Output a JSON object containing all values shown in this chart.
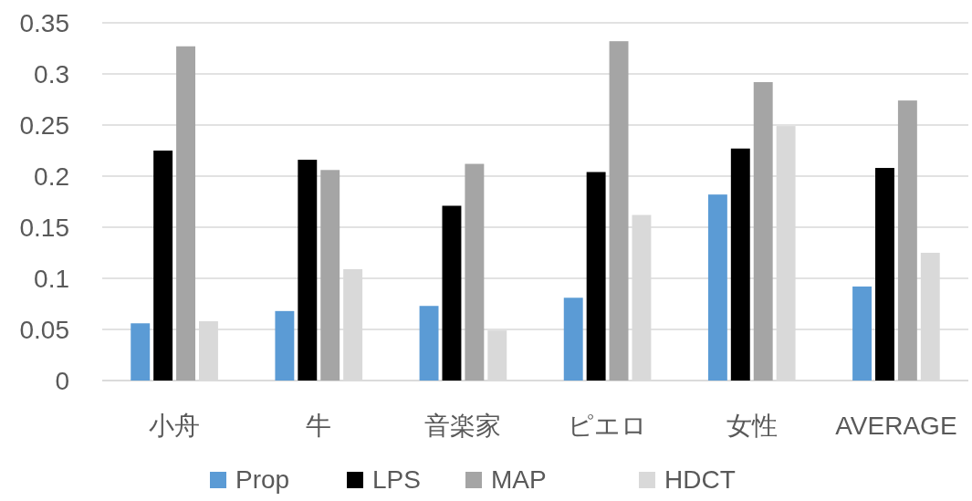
{
  "chart_data": {
    "type": "bar",
    "categories": [
      "小舟",
      "牛",
      "音楽家",
      "ピエロ",
      "女性",
      "AVERAGE"
    ],
    "series": [
      {
        "name": "Prop",
        "color": "#5b9bd5",
        "values": [
          0.056,
          0.068,
          0.073,
          0.081,
          0.182,
          0.092
        ]
      },
      {
        "name": "LPS",
        "color": "#000000",
        "values": [
          0.225,
          0.216,
          0.171,
          0.204,
          0.227,
          0.208
        ]
      },
      {
        "name": "MAP",
        "color": "#a5a5a5",
        "values": [
          0.327,
          0.206,
          0.212,
          0.332,
          0.292,
          0.274
        ]
      },
      {
        "name": "HDCT",
        "color": "#d9d9d9",
        "values": [
          0.058,
          0.109,
          0.049,
          0.162,
          0.249,
          0.125
        ]
      }
    ],
    "ylim": [
      0,
      0.35
    ],
    "yticks": [
      0,
      0.05,
      0.1,
      0.15,
      0.2,
      0.25,
      0.3,
      0.35
    ],
    "grid": "y",
    "legend": "bottom"
  }
}
